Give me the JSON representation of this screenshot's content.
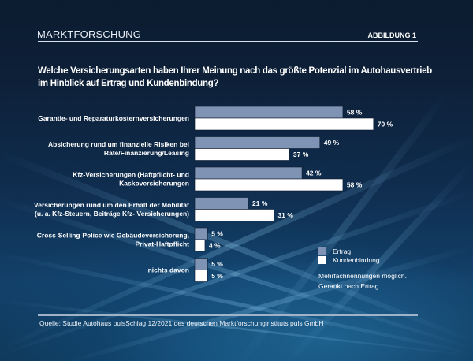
{
  "header": {
    "title": "MARKTFORSCHUNG",
    "figure_label": "ABBILDUNG 1"
  },
  "question": "Welche Versicherungsarten haben Ihrer Meinung nach das größte Potenzial im Autohausvertrieb im Hinblick auf Ertrag und Kundenbindung?",
  "legend": {
    "ertrag": "Ertrag",
    "kundenbindung": "Kundenbindung"
  },
  "note": {
    "line1": "Mehrfachnennungen möglich.",
    "line2": "Gerankt nach Ertrag"
  },
  "footer": {
    "source": "Quelle: Studie Autohaus pulsSchlag 12/2021 des deutschen Marktforschunginstituts puls  GmbH"
  },
  "colors": {
    "ertrag": "#7f93b5",
    "kundenbindung": "#ffffff"
  },
  "chart_data": {
    "type": "bar",
    "orientation": "horizontal",
    "title": "Welche Versicherungsarten haben Ihrer Meinung nach das größte Potenzial im Autohausvertrieb im Hinblick auf Ertrag und Kundenbindung?",
    "xlabel": "",
    "ylabel": "",
    "unit": "%",
    "xlim": [
      0,
      100
    ],
    "grid": false,
    "legend_position": "bottom-right",
    "categories": [
      [
        "Garantie- und Reparaturkosternversicherungen"
      ],
      [
        "Absicherung rund um finanzielle Risiken bei",
        "Rate/Finanzierung/Leasing"
      ],
      [
        "Kfz-Versicherungen (Haftpflicht- und",
        "Kaskoversicherungen"
      ],
      [
        "Versicherungen rund um den Erhalt der Mobilität",
        "(u. a.  Kfz-Steuern, Beiträge Kfz- Versicherungen)"
      ],
      [
        "Cross-Selling-Police wie Gebäudeversicherung,",
        "Privat-Haftpflicht"
      ],
      [
        "nichts davon"
      ]
    ],
    "series": [
      {
        "name": "Ertrag",
        "values": [
          58,
          49,
          42,
          21,
          5,
          5
        ],
        "labels": [
          "58 %",
          "49 %",
          "42 %",
          "21 %",
          "5 %",
          "5 %"
        ]
      },
      {
        "name": "Kundenbindung",
        "values": [
          70,
          37,
          58,
          31,
          4,
          5
        ],
        "labels": [
          "70 %",
          "37 %",
          "58 %",
          "31 %",
          "4 %",
          "5 %"
        ]
      }
    ]
  }
}
